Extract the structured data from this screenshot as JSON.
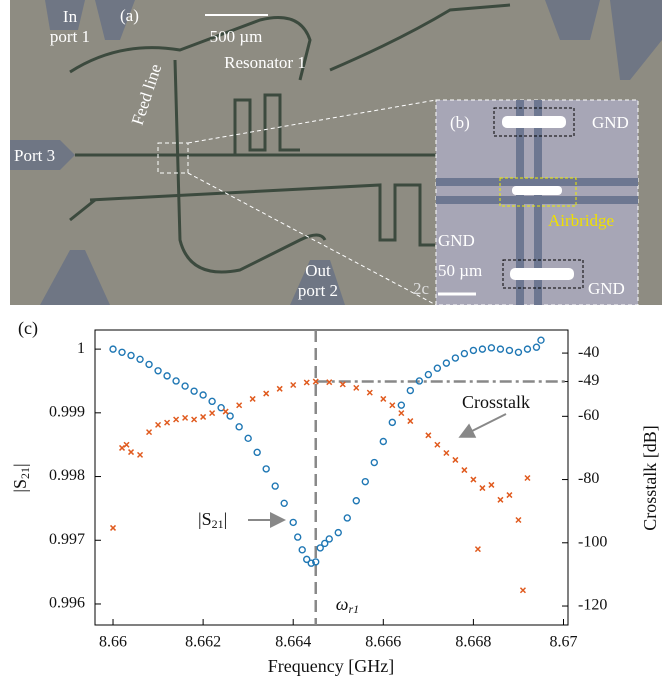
{
  "image_panel": {
    "panel_a": "(a)",
    "scale_a": "500 µm",
    "in_port": [
      "In",
      "port 1"
    ],
    "resonator": "Resonator 1",
    "feed_line": "Feed line",
    "port3": "Port 3",
    "out_port": [
      "Out",
      "port 2"
    ],
    "cut_text": "2c",
    "panel_b": "(b)",
    "gnd_labels": [
      "GND",
      "GND",
      "GND"
    ],
    "airbridge": "Airbridge",
    "scale_b": "50 µm"
  },
  "chart_data": {
    "type": "scatter",
    "panel_label": "(c)",
    "xlabel": "Frequency [GHz]",
    "ylabel_parts": [
      "|S",
      "21",
      "|"
    ],
    "y2label": "Crosstalk [dB]",
    "xlim": [
      8.6596,
      8.6701
    ],
    "xticks": [
      8.66,
      8.662,
      8.664,
      8.666,
      8.668,
      8.67
    ],
    "ylim": [
      0.99567,
      1.0003
    ],
    "yticks": [
      0.996,
      0.997,
      0.998,
      0.999,
      1
    ],
    "y2lim": [
      -126,
      -32.7
    ],
    "y2ticks": [
      -120,
      -100,
      -80,
      -60,
      -49,
      -40
    ],
    "resonance_x": 8.6645,
    "resonance_label_parts": [
      "ω",
      "r1"
    ],
    "annotations": {
      "crosstalk": "Crosstalk",
      "s21_parts": [
        "|S",
        "21",
        "|"
      ]
    },
    "series": [
      {
        "name": "|S21|",
        "color": "#1f77b4",
        "marker": "circle",
        "axis": "y",
        "x": [
          8.66,
          8.6602,
          8.6604,
          8.6606,
          8.6608,
          8.661,
          8.6612,
          8.6614,
          8.6616,
          8.6618,
          8.662,
          8.6622,
          8.6624,
          8.6626,
          8.6628,
          8.663,
          8.6632,
          8.6634,
          8.6636,
          8.6638,
          8.664,
          8.6641,
          8.6642,
          8.6643,
          8.6644,
          8.6645,
          8.6646,
          8.6647,
          8.6648,
          8.665,
          8.6652,
          8.6654,
          8.6656,
          8.6658,
          8.666,
          8.6662,
          8.6664,
          8.6666,
          8.6668,
          8.667,
          8.6672,
          8.6674,
          8.6676,
          8.6678,
          8.668,
          8.6682,
          8.6684,
          8.6686,
          8.6688,
          8.669,
          8.6692,
          8.6694,
          8.6695
        ],
        "values": [
          1.0,
          0.99995,
          0.9999,
          0.99984,
          0.99976,
          0.99966,
          0.99958,
          0.9995,
          0.99942,
          0.99934,
          0.99928,
          0.99918,
          0.99908,
          0.99895,
          0.99878,
          0.9986,
          0.99838,
          0.99812,
          0.99785,
          0.99758,
          0.99728,
          0.99705,
          0.99685,
          0.9967,
          0.99664,
          0.99666,
          0.99688,
          0.99695,
          0.99702,
          0.99712,
          0.99735,
          0.99762,
          0.99792,
          0.99822,
          0.99855,
          0.99885,
          0.99912,
          0.99935,
          0.9995,
          0.9996,
          0.9997,
          0.99978,
          0.99986,
          0.99993,
          0.99998,
          1.0,
          1.00002,
          1.0,
          0.99998,
          0.99995,
          1.0,
          1.00003,
          1.00014
        ]
      },
      {
        "name": "Crosstalk",
        "color": "#e05a1e",
        "marker": "x",
        "axis": "y2",
        "x": [
          8.66,
          8.6602,
          8.6603,
          8.6604,
          8.6606,
          8.6608,
          8.661,
          8.6612,
          8.6614,
          8.6616,
          8.6618,
          8.662,
          8.6622,
          8.6625,
          8.6628,
          8.6631,
          8.6634,
          8.6637,
          8.664,
          8.6643,
          8.6645,
          8.6648,
          8.6651,
          8.6654,
          8.6657,
          8.666,
          8.6662,
          8.6664,
          8.6666,
          8.667,
          8.6672,
          8.6674,
          8.6676,
          8.6678,
          8.668,
          8.6681,
          8.6682,
          8.6684,
          8.6686,
          8.6688,
          8.669,
          8.6691,
          8.6692
        ],
        "values": [
          -95.3,
          -70,
          -69,
          -71.3,
          -72.2,
          -65,
          -62.7,
          -62,
          -61,
          -60.5,
          -61,
          -60.2,
          -59,
          -58.5,
          -56.5,
          -54.5,
          -52.8,
          -51.3,
          -50.1,
          -49.3,
          -49,
          -49.2,
          -49.9,
          -51,
          -52.5,
          -54.5,
          -56.5,
          -59,
          -61.5,
          -66,
          -69,
          -71.6,
          -73.8,
          -77,
          -80,
          -102,
          -82.7,
          -81.7,
          -86.4,
          -84.9,
          -92.8,
          -115,
          -79.5
        ]
      }
    ]
  }
}
